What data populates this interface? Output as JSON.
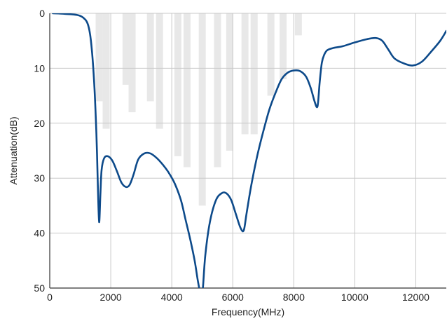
{
  "chart_data": {
    "type": "line",
    "title": "",
    "xlabel": "Frequency(MHz)",
    "ylabel": "Attenuation(dB)",
    "xlim": [
      0,
      13000
    ],
    "ylim": [
      0,
      50
    ],
    "y_inverted": true,
    "grid": true,
    "x_ticks": [
      0,
      2000,
      4000,
      6000,
      8000,
      10000,
      12000
    ],
    "x_tick_labels": [
      "0",
      "2000",
      "4000",
      "6000",
      "8000",
      "10000",
      "12000"
    ],
    "y_ticks": [
      0,
      10,
      20,
      30,
      40,
      50
    ],
    "y_tick_labels": [
      "0",
      "10",
      "20",
      "30",
      "40",
      "50"
    ],
    "colors": {
      "line": "#0d4a8a",
      "spec_bars": "#e8e8e8",
      "grid": "#c8c8c8"
    },
    "series": [
      {
        "x": [
          100,
          500,
          900,
          1100,
          1250,
          1350,
          1450,
          1530,
          1580,
          1620,
          1660,
          1700,
          1780,
          1900,
          2050,
          2200,
          2350,
          2500,
          2620,
          2750,
          2900,
          3100,
          3300,
          3500,
          3700,
          3900,
          4100,
          4300,
          4450,
          4600,
          4750,
          4850,
          4920,
          4970,
          5020,
          5100,
          5250,
          5450,
          5650,
          5800,
          5950,
          6100,
          6250,
          6360,
          6450,
          6600,
          6800,
          7000,
          7200,
          7400,
          7600,
          7800,
          8000,
          8200,
          8400,
          8550,
          8680,
          8760,
          8800,
          8850,
          8920,
          9000,
          9100,
          9300,
          9600,
          10000,
          10400,
          10700,
          10900,
          11100,
          11300,
          11600,
          11900,
          12200,
          12500,
          12800,
          13000
        ],
        "values": [
          0.0,
          0.1,
          0.3,
          0.8,
          2.0,
          5.0,
          12.0,
          22.0,
          32.0,
          38.0,
          33.0,
          28.5,
          26.4,
          26.0,
          26.8,
          28.7,
          30.8,
          31.6,
          31.2,
          29.3,
          26.6,
          25.5,
          25.5,
          26.3,
          27.5,
          29.0,
          31.0,
          34.0,
          37.5,
          41.0,
          45.0,
          48.5,
          50.5,
          51.0,
          50.0,
          44.0,
          38.0,
          34.0,
          32.7,
          32.8,
          34.0,
          36.5,
          39.0,
          39.5,
          36.5,
          31.5,
          26.0,
          21.5,
          17.5,
          14.5,
          12.0,
          10.8,
          10.4,
          10.5,
          11.5,
          13.5,
          16.0,
          17.1,
          16.0,
          12.5,
          9.0,
          7.5,
          6.7,
          6.3,
          6.0,
          5.3,
          4.7,
          4.5,
          5.0,
          6.6,
          8.2,
          9.1,
          9.5,
          8.8,
          7.0,
          5.0,
          3.2
        ]
      }
    ],
    "spec_bars": [
      {
        "x": 1620,
        "from": 0,
        "to": 16
      },
      {
        "x": 1850,
        "from": 0,
        "to": 21
      },
      {
        "x": 2500,
        "from": 0,
        "to": 13
      },
      {
        "x": 2700,
        "from": 0,
        "to": 18
      },
      {
        "x": 3300,
        "from": 0,
        "to": 16
      },
      {
        "x": 3600,
        "from": 0,
        "to": 21
      },
      {
        "x": 4200,
        "from": 0,
        "to": 26
      },
      {
        "x": 4500,
        "from": 0,
        "to": 28
      },
      {
        "x": 5000,
        "from": 0,
        "to": 35
      },
      {
        "x": 5500,
        "from": 0,
        "to": 28
      },
      {
        "x": 5900,
        "from": 0,
        "to": 25
      },
      {
        "x": 6400,
        "from": 0,
        "to": 22
      },
      {
        "x": 6700,
        "from": 0,
        "to": 22
      },
      {
        "x": 7250,
        "from": 0,
        "to": 15
      },
      {
        "x": 7650,
        "from": 0,
        "to": 12
      },
      {
        "x": 8150,
        "from": 0,
        "to": 4
      }
    ]
  }
}
